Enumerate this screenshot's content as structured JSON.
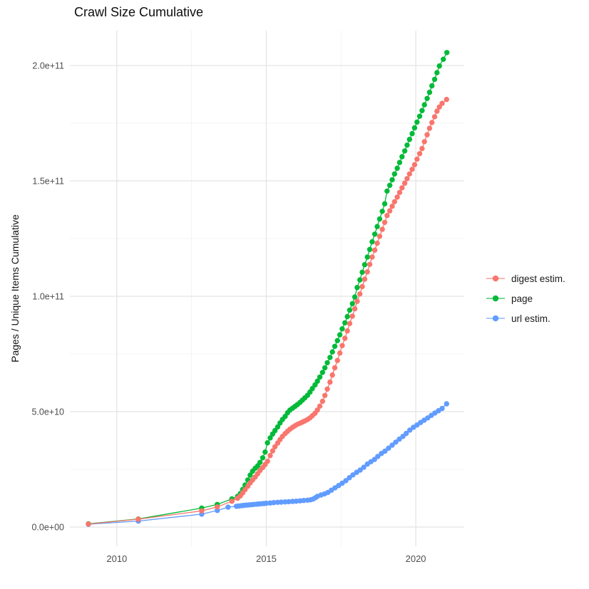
{
  "chart_data": {
    "type": "scatter",
    "title": "Crawl Size Cumulative",
    "xlabel": "",
    "ylabel": "Pages / Unique Items Cumulative",
    "value_unit": "billions (1e9 items)",
    "grid": true,
    "legend_position": "right",
    "xlim": [
      2008.43,
      2021.62
    ],
    "ylim_billions": [
      -8.33,
      215.12
    ],
    "x_axis": {
      "ticks": [
        {
          "label": "2010",
          "year": 2010
        },
        {
          "label": "2015",
          "year": 2015
        },
        {
          "label": "2020",
          "year": 2020
        }
      ],
      "minor_years": [
        2012.5,
        2017.5
      ]
    },
    "y_axis": {
      "ticks": [
        {
          "label": "0.0e+00",
          "billions": 0
        },
        {
          "label": "5.0e+10",
          "billions": 50
        },
        {
          "label": "1.0e+11",
          "billions": 100
        },
        {
          "label": "1.5e+11",
          "billions": 150
        },
        {
          "label": "2.0e+11",
          "billions": 200
        }
      ],
      "minor_billions": [
        25,
        75,
        125,
        175
      ]
    },
    "series": [
      {
        "name": "digest estim.",
        "color": "#F8766D",
        "points": [
          [
            2009.05,
            1.3
          ],
          [
            2010.72,
            3.4
          ],
          [
            2012.84,
            7.0
          ],
          [
            2013.36,
            8.7
          ],
          [
            2013.85,
            11.2
          ],
          [
            2014.04,
            12.5
          ],
          [
            2014.13,
            13.5
          ],
          [
            2014.21,
            14.8
          ],
          [
            2014.29,
            16.2
          ],
          [
            2014.38,
            17.7
          ],
          [
            2014.46,
            19.1
          ],
          [
            2014.54,
            20.4
          ],
          [
            2014.63,
            21.7
          ],
          [
            2014.71,
            23.1
          ],
          [
            2014.79,
            24.5
          ],
          [
            2014.88,
            25.8
          ],
          [
            2014.96,
            27.1
          ],
          [
            2015.04,
            28.5
          ],
          [
            2015.13,
            31.0
          ],
          [
            2015.21,
            33.0
          ],
          [
            2015.29,
            34.8
          ],
          [
            2015.38,
            36.4
          ],
          [
            2015.46,
            37.9
          ],
          [
            2015.54,
            39.3
          ],
          [
            2015.63,
            40.5
          ],
          [
            2015.71,
            41.5
          ],
          [
            2015.79,
            42.4
          ],
          [
            2015.88,
            43.2
          ],
          [
            2015.96,
            43.9
          ],
          [
            2016.04,
            44.5
          ],
          [
            2016.13,
            45.0
          ],
          [
            2016.21,
            45.5
          ],
          [
            2016.29,
            46.0
          ],
          [
            2016.38,
            46.6
          ],
          [
            2016.46,
            47.3
          ],
          [
            2016.54,
            48.2
          ],
          [
            2016.63,
            49.3
          ],
          [
            2016.71,
            50.7
          ],
          [
            2016.79,
            52.4
          ],
          [
            2016.88,
            54.5
          ],
          [
            2016.96,
            57.0
          ],
          [
            2017.04,
            59.8
          ],
          [
            2017.13,
            62.8
          ],
          [
            2017.21,
            65.9
          ],
          [
            2017.29,
            69.0
          ],
          [
            2017.38,
            72.2
          ],
          [
            2017.46,
            75.4
          ],
          [
            2017.54,
            78.6
          ],
          [
            2017.63,
            81.8
          ],
          [
            2017.71,
            85.0
          ],
          [
            2017.79,
            88.2
          ],
          [
            2017.88,
            91.4
          ],
          [
            2017.96,
            94.6
          ],
          [
            2018.04,
            97.8
          ],
          [
            2018.13,
            101.0
          ],
          [
            2018.21,
            104.2
          ],
          [
            2018.29,
            107.4
          ],
          [
            2018.38,
            110.6
          ],
          [
            2018.46,
            113.8
          ],
          [
            2018.54,
            117.0
          ],
          [
            2018.63,
            120.0
          ],
          [
            2018.71,
            123.0
          ],
          [
            2018.79,
            126.0
          ],
          [
            2018.88,
            129.0
          ],
          [
            2018.96,
            132.0
          ],
          [
            2019.04,
            135.0
          ],
          [
            2019.13,
            137.0
          ],
          [
            2019.21,
            139.0
          ],
          [
            2019.29,
            141.0
          ],
          [
            2019.38,
            143.0
          ],
          [
            2019.46,
            145.0
          ],
          [
            2019.54,
            147.0
          ],
          [
            2019.63,
            149.0
          ],
          [
            2019.71,
            151.0
          ],
          [
            2019.79,
            153.0
          ],
          [
            2019.88,
            155.0
          ],
          [
            2019.96,
            157.0
          ],
          [
            2020.04,
            159.4
          ],
          [
            2020.13,
            161.8
          ],
          [
            2020.21,
            164.0
          ],
          [
            2020.29,
            167.0
          ],
          [
            2020.38,
            170.0
          ],
          [
            2020.46,
            172.8
          ],
          [
            2020.54,
            175.3
          ],
          [
            2020.63,
            177.8
          ],
          [
            2020.71,
            180.2
          ],
          [
            2020.79,
            182.0
          ],
          [
            2020.88,
            183.6
          ],
          [
            2021.03,
            185.3
          ]
        ]
      },
      {
        "name": "page",
        "color": "#00BA38",
        "points": [
          [
            2009.05,
            1.4
          ],
          [
            2010.72,
            3.5
          ],
          [
            2012.84,
            8.2
          ],
          [
            2013.36,
            9.8
          ],
          [
            2013.85,
            12.2
          ],
          [
            2014.04,
            13.3
          ],
          [
            2014.13,
            14.5
          ],
          [
            2014.21,
            16.3
          ],
          [
            2014.29,
            18.2
          ],
          [
            2014.38,
            20.4
          ],
          [
            2014.46,
            22.5
          ],
          [
            2014.54,
            24.2
          ],
          [
            2014.63,
            25.5
          ],
          [
            2014.71,
            26.5
          ],
          [
            2014.79,
            28.0
          ],
          [
            2014.88,
            30.0
          ],
          [
            2014.96,
            32.5
          ],
          [
            2015.04,
            36.5
          ],
          [
            2015.13,
            38.6
          ],
          [
            2015.21,
            40.3
          ],
          [
            2015.29,
            41.8
          ],
          [
            2015.38,
            43.4
          ],
          [
            2015.46,
            45.1
          ],
          [
            2015.54,
            46.6
          ],
          [
            2015.63,
            47.9
          ],
          [
            2015.71,
            49.5
          ],
          [
            2015.79,
            50.7
          ],
          [
            2015.88,
            51.5
          ],
          [
            2015.96,
            52.3
          ],
          [
            2016.04,
            53.1
          ],
          [
            2016.13,
            54.0
          ],
          [
            2016.21,
            55.0
          ],
          [
            2016.29,
            56.0
          ],
          [
            2016.38,
            57.1
          ],
          [
            2016.46,
            58.5
          ],
          [
            2016.54,
            60.0
          ],
          [
            2016.63,
            61.6
          ],
          [
            2016.71,
            63.2
          ],
          [
            2016.79,
            65.0
          ],
          [
            2016.88,
            67.0
          ],
          [
            2016.96,
            69.0
          ],
          [
            2017.04,
            71.2
          ],
          [
            2017.13,
            73.5
          ],
          [
            2017.21,
            75.9
          ],
          [
            2017.29,
            78.3
          ],
          [
            2017.38,
            80.8
          ],
          [
            2017.46,
            83.3
          ],
          [
            2017.54,
            85.9
          ],
          [
            2017.63,
            88.5
          ],
          [
            2017.71,
            91.2
          ],
          [
            2017.79,
            94.0
          ],
          [
            2017.88,
            96.8
          ],
          [
            2017.96,
            99.7
          ],
          [
            2018.04,
            103.8
          ],
          [
            2018.13,
            107.1
          ],
          [
            2018.21,
            110.4
          ],
          [
            2018.29,
            113.7
          ],
          [
            2018.38,
            117.0
          ],
          [
            2018.46,
            120.3
          ],
          [
            2018.54,
            123.6
          ],
          [
            2018.63,
            126.9
          ],
          [
            2018.71,
            130.2
          ],
          [
            2018.79,
            133.5
          ],
          [
            2018.88,
            136.8
          ],
          [
            2018.96,
            140.1
          ],
          [
            2019.04,
            145.6
          ],
          [
            2019.13,
            148.1
          ],
          [
            2019.21,
            150.5
          ],
          [
            2019.29,
            153.0
          ],
          [
            2019.38,
            155.5
          ],
          [
            2019.46,
            158.0
          ],
          [
            2019.54,
            160.5
          ],
          [
            2019.63,
            163.0
          ],
          [
            2019.71,
            165.5
          ],
          [
            2019.79,
            168.0
          ],
          [
            2019.88,
            170.5
          ],
          [
            2019.96,
            173.0
          ],
          [
            2020.04,
            175.5
          ],
          [
            2020.13,
            178.0
          ],
          [
            2020.21,
            180.5
          ],
          [
            2020.29,
            183.0
          ],
          [
            2020.38,
            185.7
          ],
          [
            2020.46,
            188.4
          ],
          [
            2020.54,
            191.2
          ],
          [
            2020.63,
            194.0
          ],
          [
            2020.71,
            196.9
          ],
          [
            2020.79,
            199.8
          ],
          [
            2020.92,
            202.7
          ],
          [
            2021.04,
            205.6
          ]
        ]
      },
      {
        "name": "url estim.",
        "color": "#619CFF",
        "points": [
          [
            2009.05,
            1.2
          ],
          [
            2010.72,
            2.6
          ],
          [
            2012.84,
            5.6
          ],
          [
            2013.36,
            7.2
          ],
          [
            2013.72,
            8.6
          ],
          [
            2014.0,
            9.0
          ],
          [
            2014.08,
            9.1
          ],
          [
            2014.17,
            9.25
          ],
          [
            2014.25,
            9.4
          ],
          [
            2014.33,
            9.5
          ],
          [
            2014.42,
            9.6
          ],
          [
            2014.5,
            9.7
          ],
          [
            2014.58,
            9.8
          ],
          [
            2014.67,
            9.9
          ],
          [
            2014.75,
            10.0
          ],
          [
            2014.83,
            10.1
          ],
          [
            2014.92,
            10.2
          ],
          [
            2015.0,
            10.3
          ],
          [
            2015.13,
            10.45
          ],
          [
            2015.25,
            10.6
          ],
          [
            2015.38,
            10.7
          ],
          [
            2015.5,
            10.8
          ],
          [
            2015.63,
            10.9
          ],
          [
            2015.75,
            11.0
          ],
          [
            2015.88,
            11.1
          ],
          [
            2016.0,
            11.2
          ],
          [
            2016.13,
            11.35
          ],
          [
            2016.25,
            11.5
          ],
          [
            2016.38,
            11.65
          ],
          [
            2016.48,
            11.8
          ],
          [
            2016.56,
            12.1
          ],
          [
            2016.64,
            12.7
          ],
          [
            2016.71,
            13.3
          ],
          [
            2016.83,
            13.9
          ],
          [
            2016.95,
            14.4
          ],
          [
            2017.06,
            15.0
          ],
          [
            2017.18,
            16.0
          ],
          [
            2017.3,
            17.0
          ],
          [
            2017.42,
            18.0
          ],
          [
            2017.54,
            19.0
          ],
          [
            2017.66,
            20.1
          ],
          [
            2017.78,
            21.4
          ],
          [
            2017.9,
            22.6
          ],
          [
            2018.02,
            23.7
          ],
          [
            2018.14,
            24.7
          ],
          [
            2018.26,
            25.9
          ],
          [
            2018.38,
            27.3
          ],
          [
            2018.5,
            28.3
          ],
          [
            2018.62,
            29.3
          ],
          [
            2018.73,
            30.6
          ],
          [
            2018.85,
            31.9
          ],
          [
            2018.97,
            32.9
          ],
          [
            2019.09,
            34.2
          ],
          [
            2019.21,
            35.5
          ],
          [
            2019.33,
            36.8
          ],
          [
            2019.45,
            38.1
          ],
          [
            2019.57,
            39.3
          ],
          [
            2019.68,
            40.6
          ],
          [
            2019.8,
            42.0
          ],
          [
            2019.92,
            43.2
          ],
          [
            2020.04,
            44.2
          ],
          [
            2020.16,
            45.3
          ],
          [
            2020.28,
            46.3
          ],
          [
            2020.4,
            47.3
          ],
          [
            2020.52,
            48.4
          ],
          [
            2020.64,
            49.4
          ],
          [
            2020.76,
            50.4
          ],
          [
            2020.88,
            51.4
          ],
          [
            2021.03,
            53.4
          ]
        ]
      }
    ],
    "colors": {
      "grid_major": "#E3E3E3",
      "grid_minor": "#F0F0F0",
      "axis_text": "#4D4D4D",
      "text": "#1a1a1a",
      "background": "#ffffff"
    }
  }
}
